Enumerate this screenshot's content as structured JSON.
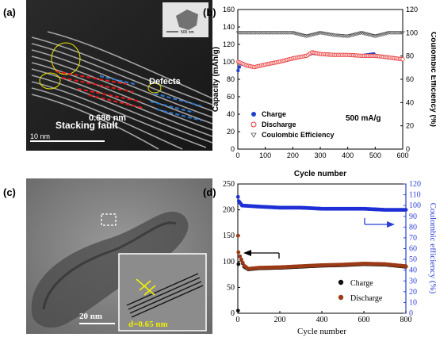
{
  "panels": {
    "a": {
      "label": "(a)",
      "annotations": {
        "defects": "Defects",
        "spacing": "0.686 nm",
        "stacking_fault": "Stacking fault",
        "scale": "10 nm",
        "inset_scale": "500 nm"
      }
    },
    "b": {
      "label": "(b)"
    },
    "c": {
      "label": "(c)",
      "annotations": {
        "scale": "20 nm",
        "spacing": "d=0.65 nm"
      }
    },
    "d": {
      "label": "(d)"
    }
  },
  "colors": {
    "charge_b": "#1f3fd0",
    "discharge_b": "#e83a3a",
    "ce_b": "#555555",
    "charge_d": "#111111",
    "discharge_d": "#9b3a16",
    "ce_d": "#1f2fd6",
    "axis_blue": "#2a3fd6",
    "yellow": "#f0f000",
    "red_dash": "#e81818",
    "blue_dash": "#2a7ad6"
  },
  "chart_data": [
    {
      "type": "scatter",
      "panel": "b",
      "xlabel": "Cycle number",
      "ylabel": "Capacity (mAh/g)",
      "y2label": "Coulombic Efficiency (%)",
      "xlim": [
        0,
        600
      ],
      "ylim": [
        0,
        160
      ],
      "y2lim": [
        0,
        120
      ],
      "xticks": [
        "0",
        "100",
        "200",
        "300",
        "400",
        "500",
        "600"
      ],
      "yticks": [
        "0",
        "20",
        "40",
        "60",
        "80",
        "100",
        "120",
        "140",
        "160"
      ],
      "y2ticks": [
        "0",
        "20",
        "40",
        "60",
        "80",
        "100",
        "120"
      ],
      "annotation": "500 mA/g",
      "legend_position": "bottom-left",
      "series": [
        {
          "name": "Charge",
          "axis": "left",
          "marker": "filled-circle",
          "points": [
            [
              1,
              90
            ],
            [
              10,
              98
            ],
            [
              30,
              96
            ],
            [
              60,
              94
            ],
            [
              100,
              97
            ],
            [
              150,
              100
            ],
            [
              200,
              104
            ],
            [
              250,
              107
            ],
            [
              270,
              110
            ],
            [
              300,
              109
            ],
            [
              350,
              108
            ],
            [
              400,
              108
            ],
            [
              450,
              107
            ],
            [
              495,
              109
            ],
            [
              500,
              107
            ],
            [
              550,
              105
            ],
            [
              600,
              103
            ]
          ]
        },
        {
          "name": "Discharge",
          "axis": "left",
          "marker": "open-circle",
          "points": [
            [
              1,
              100
            ],
            [
              10,
              99
            ],
            [
              30,
              96
            ],
            [
              60,
              94
            ],
            [
              100,
              97
            ],
            [
              150,
              100
            ],
            [
              200,
              104
            ],
            [
              250,
              107
            ],
            [
              270,
              111
            ],
            [
              300,
              109
            ],
            [
              350,
              108
            ],
            [
              400,
              108
            ],
            [
              450,
              107
            ],
            [
              500,
              107
            ],
            [
              550,
              105
            ],
            [
              600,
              103
            ]
          ]
        },
        {
          "name": "Coulombic Efficiency",
          "axis": "right",
          "marker": "open-triangle-down",
          "points": [
            [
              1,
              100
            ],
            [
              50,
              100
            ],
            [
              100,
              100
            ],
            [
              150,
              100
            ],
            [
              200,
              100
            ],
            [
              250,
              97
            ],
            [
              300,
              100
            ],
            [
              350,
              98
            ],
            [
              400,
              97
            ],
            [
              450,
              100
            ],
            [
              500,
              97
            ],
            [
              550,
              100
            ],
            [
              600,
              100
            ]
          ]
        }
      ]
    },
    {
      "type": "scatter",
      "panel": "d",
      "xlabel": "Cycle number",
      "ylabel": "",
      "y2label": "Coulombic efficiency (%)",
      "xlim": [
        0,
        800
      ],
      "ylim": [
        0,
        250
      ],
      "y2lim": [
        0,
        120
      ],
      "xticks": [
        "0",
        "200",
        "400",
        "600",
        "800"
      ],
      "yticks": [
        "0",
        "50",
        "100",
        "150",
        "200",
        "250"
      ],
      "y2ticks": [
        "0",
        "10",
        "20",
        "30",
        "40",
        "50",
        "60",
        "70",
        "80",
        "90",
        "100",
        "110",
        "120"
      ],
      "legend_position": "bottom-right",
      "series": [
        {
          "name": "Charge",
          "axis": "left",
          "marker": "filled-circle",
          "points": [
            [
              1,
              5
            ],
            [
              3,
              95
            ],
            [
              10,
              110
            ],
            [
              30,
              90
            ],
            [
              50,
              85
            ],
            [
              100,
              87
            ],
            [
              200,
              88
            ],
            [
              300,
              90
            ],
            [
              400,
              92
            ],
            [
              500,
              93
            ],
            [
              600,
              95
            ],
            [
              700,
              94
            ],
            [
              800,
              90
            ]
          ]
        },
        {
          "name": "Discharge",
          "axis": "left",
          "marker": "filled-circle",
          "points": [
            [
              1,
              150
            ],
            [
              3,
              118
            ],
            [
              10,
              110
            ],
            [
              30,
              92
            ],
            [
              50,
              86
            ],
            [
              100,
              88
            ],
            [
              200,
              89
            ],
            [
              300,
              91
            ],
            [
              400,
              93
            ],
            [
              500,
              94
            ],
            [
              600,
              96
            ],
            [
              700,
              95
            ],
            [
              800,
              91
            ]
          ]
        },
        {
          "name": "",
          "axis": "right",
          "marker": "filled-circle",
          "points": [
            [
              1,
              108
            ],
            [
              5,
              104
            ],
            [
              20,
              100
            ],
            [
              100,
              99
            ],
            [
              200,
              98
            ],
            [
              300,
              98
            ],
            [
              400,
              97
            ],
            [
              500,
              97
            ],
            [
              600,
              97
            ],
            [
              700,
              96
            ],
            [
              800,
              96
            ]
          ]
        }
      ]
    }
  ]
}
